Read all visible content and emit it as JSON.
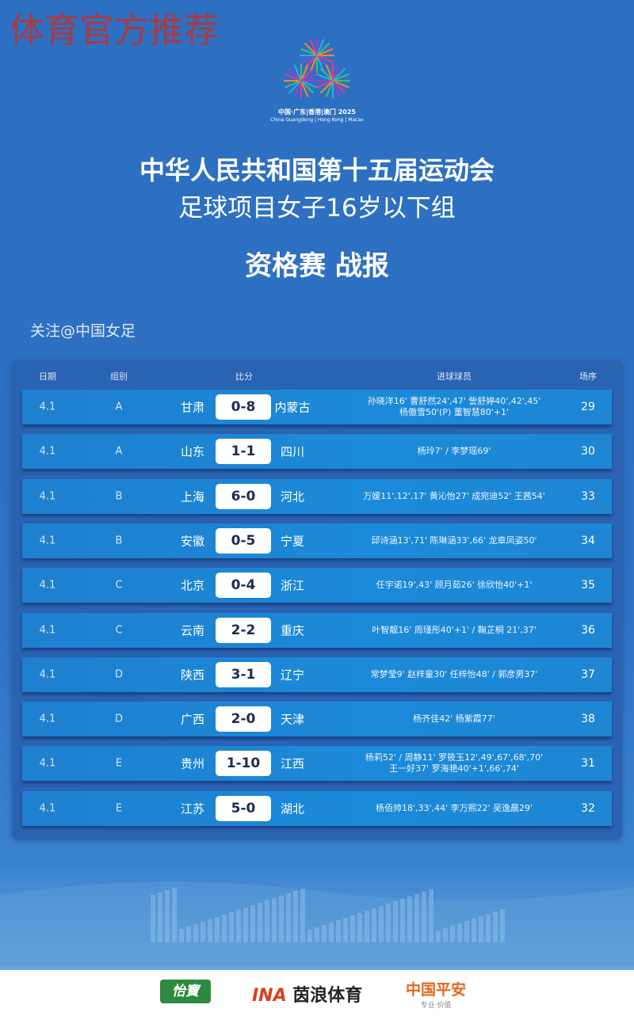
{
  "watermark": "体育官方推荐",
  "logo": {
    "cn": "中国·广东|香港|澳门 2025",
    "en": "China Guangdong | Hong Kong | Macao"
  },
  "title": {
    "line1": "中华人民共和国第十五届运动会",
    "line2": "足球项目女子16岁以下组",
    "line3": "资格赛 战报"
  },
  "follow": "关注@中国女足",
  "table": {
    "headers": {
      "date": "日期",
      "group": "组别",
      "score": "比分",
      "scorers": "进球球员",
      "match_no": "场序"
    },
    "rows": [
      {
        "date": "4.1",
        "group": "A",
        "home": "甘肃",
        "score": "0-8",
        "away": "内蒙古",
        "scorers": [
          "孙晓洋16' 曹舒然24',47' 訾舒婷40',42',45'",
          "杨傲雪50'(P) 董智慧80'+1'"
        ],
        "match_no": "29"
      },
      {
        "date": "4.1",
        "group": "A",
        "home": "山东",
        "score": "1-1",
        "away": "四川",
        "scorers": [
          "杨玲7' / 李梦瑶69'"
        ],
        "match_no": "30"
      },
      {
        "date": "4.1",
        "group": "B",
        "home": "上海",
        "score": "6-0",
        "away": "河北",
        "scorers": [
          "万媛11',12',17' 黄沁怡27' 成宛迪52' 王茜54'"
        ],
        "match_no": "33"
      },
      {
        "date": "4.1",
        "group": "B",
        "home": "安徽",
        "score": "0-5",
        "away": "宁夏",
        "scorers": [
          "邱诗涵13',71' 陈琳涵33',66' 龙章凤姿50'"
        ],
        "match_no": "34"
      },
      {
        "date": "4.1",
        "group": "C",
        "home": "北京",
        "score": "0-4",
        "away": "浙江",
        "scorers": [
          "任宇诺19',43' 顾月茹26' 徐欣怡40'+1'"
        ],
        "match_no": "35"
      },
      {
        "date": "4.1",
        "group": "C",
        "home": "云南",
        "score": "2-2",
        "away": "重庆",
        "scorers": [
          "叶智靓16' 周瑾彤40'+1' / 鞠芷桐 21',37'"
        ],
        "match_no": "36"
      },
      {
        "date": "4.1",
        "group": "D",
        "home": "陕西",
        "score": "3-1",
        "away": "辽宁",
        "scorers": [
          "常梦莹9' 赵梓童30' 任梓怡48' /  郭彦男37'"
        ],
        "match_no": "37"
      },
      {
        "date": "4.1",
        "group": "D",
        "home": "广西",
        "score": "2-0",
        "away": "天津",
        "scorers": [
          "杨齐佳42' 杨紫霞77'"
        ],
        "match_no": "38"
      },
      {
        "date": "4.1",
        "group": "E",
        "home": "贵州",
        "score": "1-10",
        "away": "江西",
        "scorers": [
          "杨莉52' / 周静11' 罗筱玉12',49',67',68',70'",
          "王一好37' 罗海艳40'+1',66',74'"
        ],
        "match_no": "31"
      },
      {
        "date": "4.1",
        "group": "E",
        "home": "江苏",
        "score": "5-0",
        "away": "湖北",
        "scorers": [
          "杨佰帅18',33',44' 李万熙22' 吴逸晨29'"
        ],
        "match_no": "32"
      }
    ]
  },
  "sponsors": {
    "s1": "怡寶",
    "s2_mark": "INA",
    "s2": "茵浪体育",
    "s3": "中国平安",
    "s3_tag": "专业·价值"
  },
  "colors": {
    "background": "#2e72c4",
    "row": "#1b8ad8",
    "score_pill": "#ffffff",
    "watermark": "#c0302c"
  }
}
